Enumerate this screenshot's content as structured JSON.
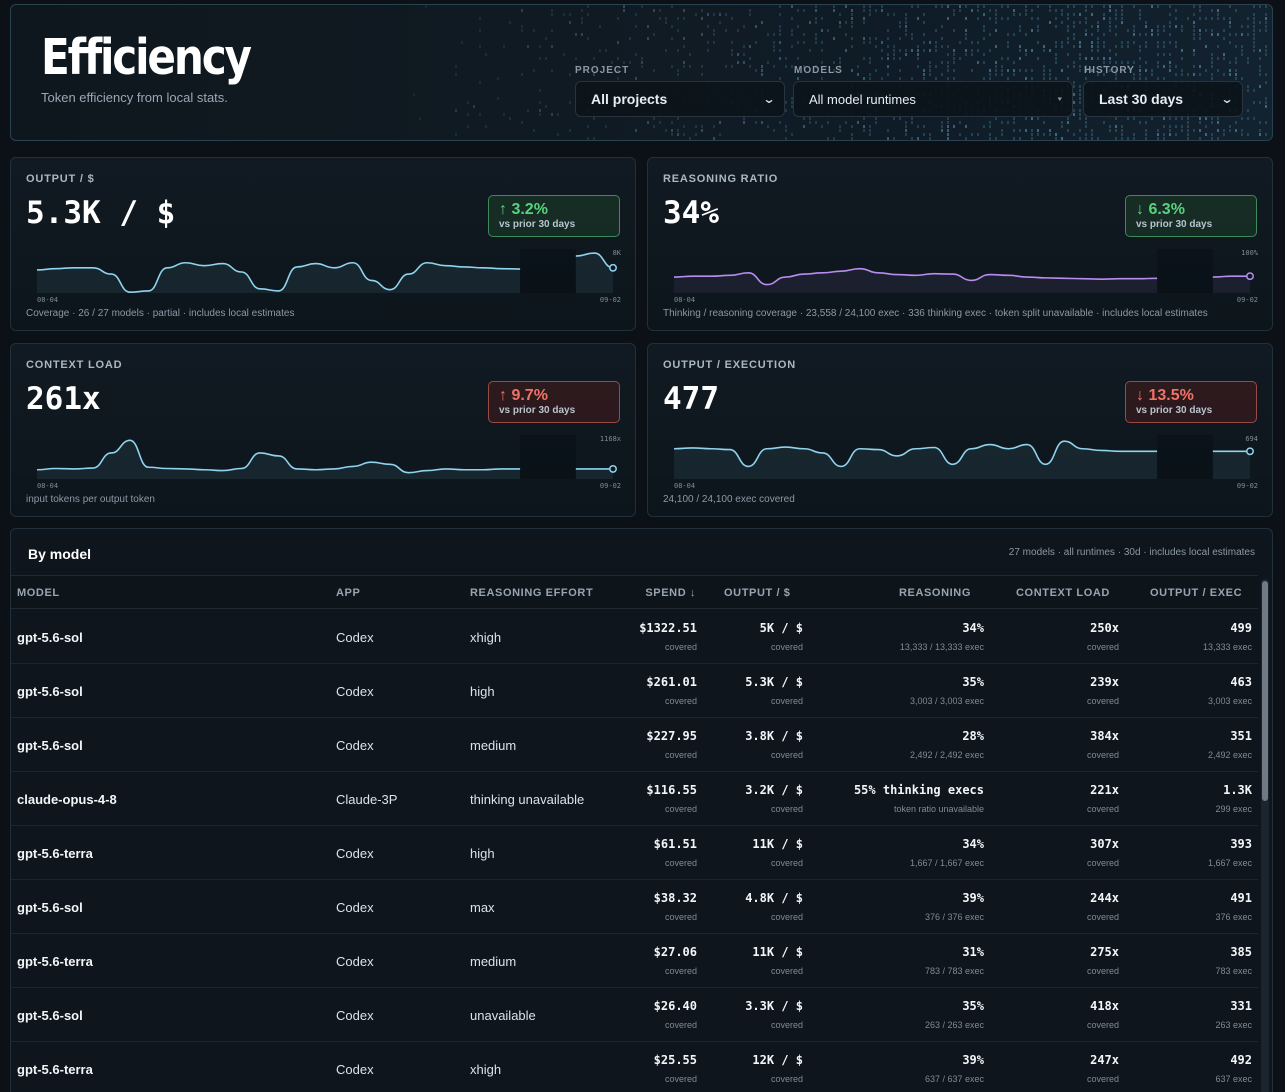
{
  "header": {
    "title": "Efficiency",
    "subtitle": "Token efficiency from local stats.",
    "filters": {
      "project": {
        "label": "PROJECT",
        "value": "All projects"
      },
      "models": {
        "label": "MODELS",
        "value": "All model runtimes"
      },
      "history": {
        "label": "HISTORY",
        "value": "Last 30 days"
      }
    }
  },
  "cards": {
    "output_per_dollar": {
      "label": "OUTPUT / $",
      "value": "5.3K / $",
      "delta": "3.2%",
      "delta_direction": "up",
      "delta_status": "good",
      "delta_sub": "vs prior 30 days",
      "spark_start": "08-04",
      "spark_end": "09-02",
      "spark_max": "8K",
      "footer": "Coverage · 26 / 27 models · partial · includes local estimates",
      "series": [
        0.55,
        0.58,
        0.6,
        0.6,
        0.45,
        0.02,
        0.05,
        0.6,
        0.72,
        0.65,
        0.7,
        0.5,
        0.1,
        0.05,
        0.62,
        0.7,
        0.6,
        0.72,
        0.3,
        0.08,
        0.45,
        0.72,
        0.65,
        0.62,
        0.6,
        0.58,
        0.57,
        null,
        null,
        0.88,
        0.95,
        0.6
      ],
      "line_color": "#8fd3ee"
    },
    "reasoning_ratio": {
      "label": "REASONING RATIO",
      "value": "34%",
      "delta": "6.3%",
      "delta_direction": "down",
      "delta_status": "good",
      "delta_sub": "vs prior 30 days",
      "spark_start": "08-04",
      "spark_end": "09-02",
      "spark_max": "100%",
      "footer": "Thinking / reasoning coverage · 23,558 / 24,100 exec · 336 thinking exec · token split unavailable · includes local estimates",
      "series": [
        0.38,
        0.4,
        0.4,
        0.42,
        0.48,
        0.2,
        0.38,
        0.45,
        0.48,
        0.52,
        0.58,
        0.48,
        0.44,
        0.42,
        0.46,
        0.45,
        0.3,
        0.44,
        0.42,
        0.38,
        0.36,
        0.35,
        0.34,
        0.33,
        0.34,
        0.34,
        0.35,
        null,
        null,
        0.38,
        0.4,
        0.4
      ],
      "line_color": "#b98cf0"
    },
    "context_load": {
      "label": "CONTEXT LOAD",
      "value": "261x",
      "delta": "9.7%",
      "delta_direction": "up",
      "delta_status": "bad",
      "delta_sub": "vs prior 30 days",
      "spark_start": "08-04",
      "spark_end": "09-02",
      "spark_max": "1168x",
      "footer": "input tokens per output token",
      "series": [
        0.22,
        0.25,
        0.24,
        0.26,
        0.62,
        0.92,
        0.28,
        0.25,
        0.24,
        0.22,
        0.2,
        0.25,
        0.62,
        0.55,
        0.24,
        0.22,
        0.24,
        0.3,
        0.4,
        0.35,
        0.15,
        0.2,
        0.24,
        0.22,
        0.22,
        0.24,
        0.24,
        null,
        null,
        0.24,
        0.24,
        0.24
      ],
      "line_color": "#8fd3ee"
    },
    "output_per_execution": {
      "label": "OUTPUT / EXECUTION",
      "value": "477",
      "delta": "13.5%",
      "delta_direction": "down",
      "delta_status": "bad",
      "delta_sub": "vs prior 30 days",
      "spark_start": "08-04",
      "spark_end": "09-02",
      "spark_max": "694",
      "footer": "24,100 / 24,100 exec covered",
      "series": [
        0.72,
        0.74,
        0.72,
        0.7,
        0.3,
        0.72,
        0.76,
        0.72,
        0.62,
        0.3,
        0.72,
        0.7,
        0.55,
        0.72,
        0.75,
        0.35,
        0.72,
        0.82,
        0.72,
        0.82,
        0.35,
        0.9,
        0.72,
        0.68,
        0.66,
        0.66,
        0.66,
        null,
        null,
        0.66,
        0.66,
        0.66
      ],
      "line_color": "#8fd3ee"
    }
  },
  "table": {
    "title": "By model",
    "meta": "27 models · all runtimes · 30d · includes local estimates",
    "headers": {
      "model": "MODEL",
      "app": "APP",
      "reasoning_effort": "REASONING EFFORT",
      "spend": "SPEND ↓",
      "output_per_dollar": "OUTPUT / $",
      "reasoning": "REASONING",
      "context_load": "CONTEXT LOAD",
      "output_per_exec": "OUTPUT / EXEC"
    },
    "rows": [
      {
        "model": "gpt-5.6-sol",
        "app": "Codex",
        "effort": "xhigh",
        "spend": "$1322.51",
        "spend_sub": "covered",
        "opd": "5K / $",
        "opd_sub": "covered",
        "reasoning": "34%",
        "reasoning_sub": "13,333 / 13,333 exec",
        "ctx": "250x",
        "ctx_sub": "covered",
        "ope": "499",
        "ope_sub": "13,333 exec"
      },
      {
        "model": "gpt-5.6-sol",
        "app": "Codex",
        "effort": "high",
        "spend": "$261.01",
        "spend_sub": "covered",
        "opd": "5.3K / $",
        "opd_sub": "covered",
        "reasoning": "35%",
        "reasoning_sub": "3,003 / 3,003 exec",
        "ctx": "239x",
        "ctx_sub": "covered",
        "ope": "463",
        "ope_sub": "3,003 exec"
      },
      {
        "model": "gpt-5.6-sol",
        "app": "Codex",
        "effort": "medium",
        "spend": "$227.95",
        "spend_sub": "covered",
        "opd": "3.8K / $",
        "opd_sub": "covered",
        "reasoning": "28%",
        "reasoning_sub": "2,492 / 2,492 exec",
        "ctx": "384x",
        "ctx_sub": "covered",
        "ope": "351",
        "ope_sub": "2,492 exec"
      },
      {
        "model": "claude-opus-4-8",
        "app": "Claude-3P",
        "effort": "thinking unavailable",
        "spend": "$116.55",
        "spend_sub": "covered",
        "opd": "3.2K / $",
        "opd_sub": "covered",
        "reasoning": "55% thinking execs",
        "reasoning_sub": "token ratio unavailable",
        "ctx": "221x",
        "ctx_sub": "covered",
        "ope": "1.3K",
        "ope_sub": "299 exec"
      },
      {
        "model": "gpt-5.6-terra",
        "app": "Codex",
        "effort": "high",
        "spend": "$61.51",
        "spend_sub": "covered",
        "opd": "11K / $",
        "opd_sub": "covered",
        "reasoning": "34%",
        "reasoning_sub": "1,667 / 1,667 exec",
        "ctx": "307x",
        "ctx_sub": "covered",
        "ope": "393",
        "ope_sub": "1,667 exec"
      },
      {
        "model": "gpt-5.6-sol",
        "app": "Codex",
        "effort": "max",
        "spend": "$38.32",
        "spend_sub": "covered",
        "opd": "4.8K / $",
        "opd_sub": "covered",
        "reasoning": "39%",
        "reasoning_sub": "376 / 376 exec",
        "ctx": "244x",
        "ctx_sub": "covered",
        "ope": "491",
        "ope_sub": "376 exec"
      },
      {
        "model": "gpt-5.6-terra",
        "app": "Codex",
        "effort": "medium",
        "spend": "$27.06",
        "spend_sub": "covered",
        "opd": "11K / $",
        "opd_sub": "covered",
        "reasoning": "31%",
        "reasoning_sub": "783 / 783 exec",
        "ctx": "275x",
        "ctx_sub": "covered",
        "ope": "385",
        "ope_sub": "783 exec"
      },
      {
        "model": "gpt-5.6-sol",
        "app": "Codex",
        "effort": "unavailable",
        "spend": "$26.40",
        "spend_sub": "covered",
        "opd": "3.3K / $",
        "opd_sub": "covered",
        "reasoning": "35%",
        "reasoning_sub": "263 / 263 exec",
        "ctx": "418x",
        "ctx_sub": "covered",
        "ope": "331",
        "ope_sub": "263 exec"
      },
      {
        "model": "gpt-5.6-terra",
        "app": "Codex",
        "effort": "xhigh",
        "spend": "$25.55",
        "spend_sub": "covered",
        "opd": "12K / $",
        "opd_sub": "covered",
        "reasoning": "39%",
        "reasoning_sub": "637 / 637 exec",
        "ctx": "247x",
        "ctx_sub": "covered",
        "ope": "492",
        "ope_sub": "637 exec"
      }
    ]
  },
  "icons": {
    "up_arrow": "arrow-up-icon",
    "down_arrow": "arrow-down-icon",
    "chevron": "chevron-down-icon",
    "sort": "sort-desc-icon"
  },
  "colors": {
    "background": "#0b1117",
    "accent": "#8fd3ee",
    "reasoning_line": "#b98cf0",
    "good": "#56d37e",
    "bad": "#f0736a"
  }
}
